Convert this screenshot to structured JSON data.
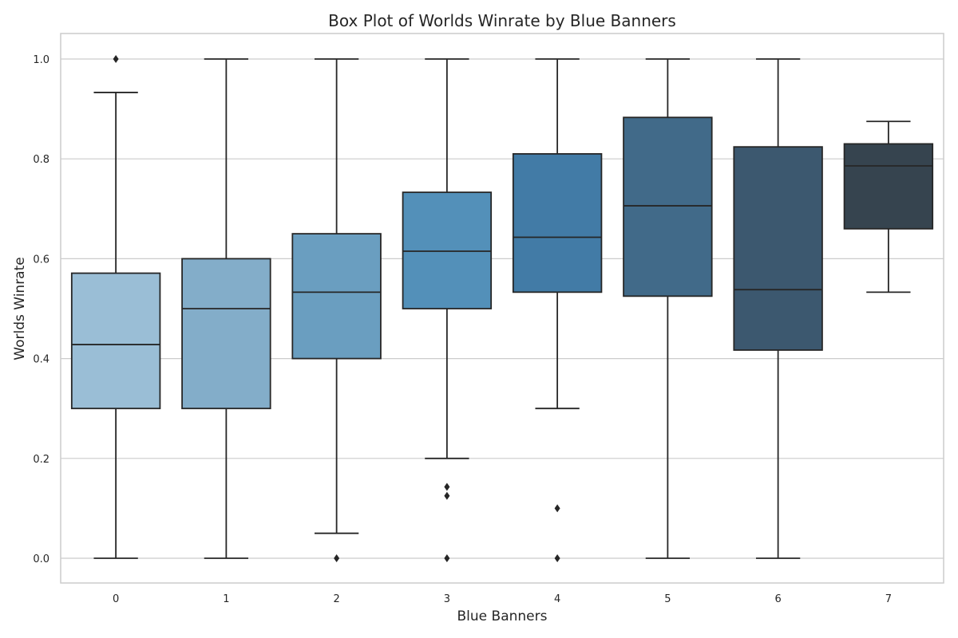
{
  "chart_data": {
    "type": "box",
    "title": "Box Plot of Worlds Winrate by Blue Banners",
    "xlabel": "Blue Banners",
    "ylabel": "Worlds Winrate",
    "ylim": [
      -0.05,
      1.05
    ],
    "yticks": [
      "0.0",
      "0.2",
      "0.4",
      "0.6",
      "0.8",
      "1.0"
    ],
    "grid": true,
    "categories": [
      "0",
      "1",
      "2",
      "3",
      "4",
      "5",
      "6",
      "7"
    ],
    "boxes": [
      {
        "category": "0",
        "whisker_low": 0.0,
        "q1": 0.3,
        "median": 0.428,
        "q3": 0.571,
        "whisker_high": 0.933,
        "outliers": [
          1.0
        ],
        "color": "#9abed6"
      },
      {
        "category": "1",
        "whisker_low": 0.0,
        "q1": 0.3,
        "median": 0.5,
        "q3": 0.6,
        "whisker_high": 1.0,
        "outliers": [],
        "color": "#83adc9"
      },
      {
        "category": "2",
        "whisker_low": 0.05,
        "q1": 0.4,
        "median": 0.533,
        "q3": 0.65,
        "whisker_high": 1.0,
        "outliers": [
          0.0
        ],
        "color": "#6a9ec0"
      },
      {
        "category": "3",
        "whisker_low": 0.2,
        "q1": 0.5,
        "median": 0.615,
        "q3": 0.733,
        "whisker_high": 1.0,
        "outliers": [
          0.143,
          0.125,
          0.0
        ],
        "color": "#5390b9"
      },
      {
        "category": "4",
        "whisker_low": 0.3,
        "q1": 0.533,
        "median": 0.643,
        "q3": 0.81,
        "whisker_high": 1.0,
        "outliers": [
          0.1,
          0.0
        ],
        "color": "#427ba6"
      },
      {
        "category": "5",
        "whisker_low": 0.0,
        "q1": 0.525,
        "median": 0.706,
        "q3": 0.883,
        "whisker_high": 1.0,
        "outliers": [],
        "color": "#416a89"
      },
      {
        "category": "6",
        "whisker_low": 0.0,
        "q1": 0.417,
        "median": 0.538,
        "q3": 0.824,
        "whisker_high": 1.0,
        "outliers": [],
        "color": "#3c586f"
      },
      {
        "category": "7",
        "whisker_low": 0.533,
        "q1": 0.66,
        "median": 0.786,
        "q3": 0.83,
        "whisker_high": 0.875,
        "outliers": [],
        "color": "#36444f"
      }
    ]
  }
}
